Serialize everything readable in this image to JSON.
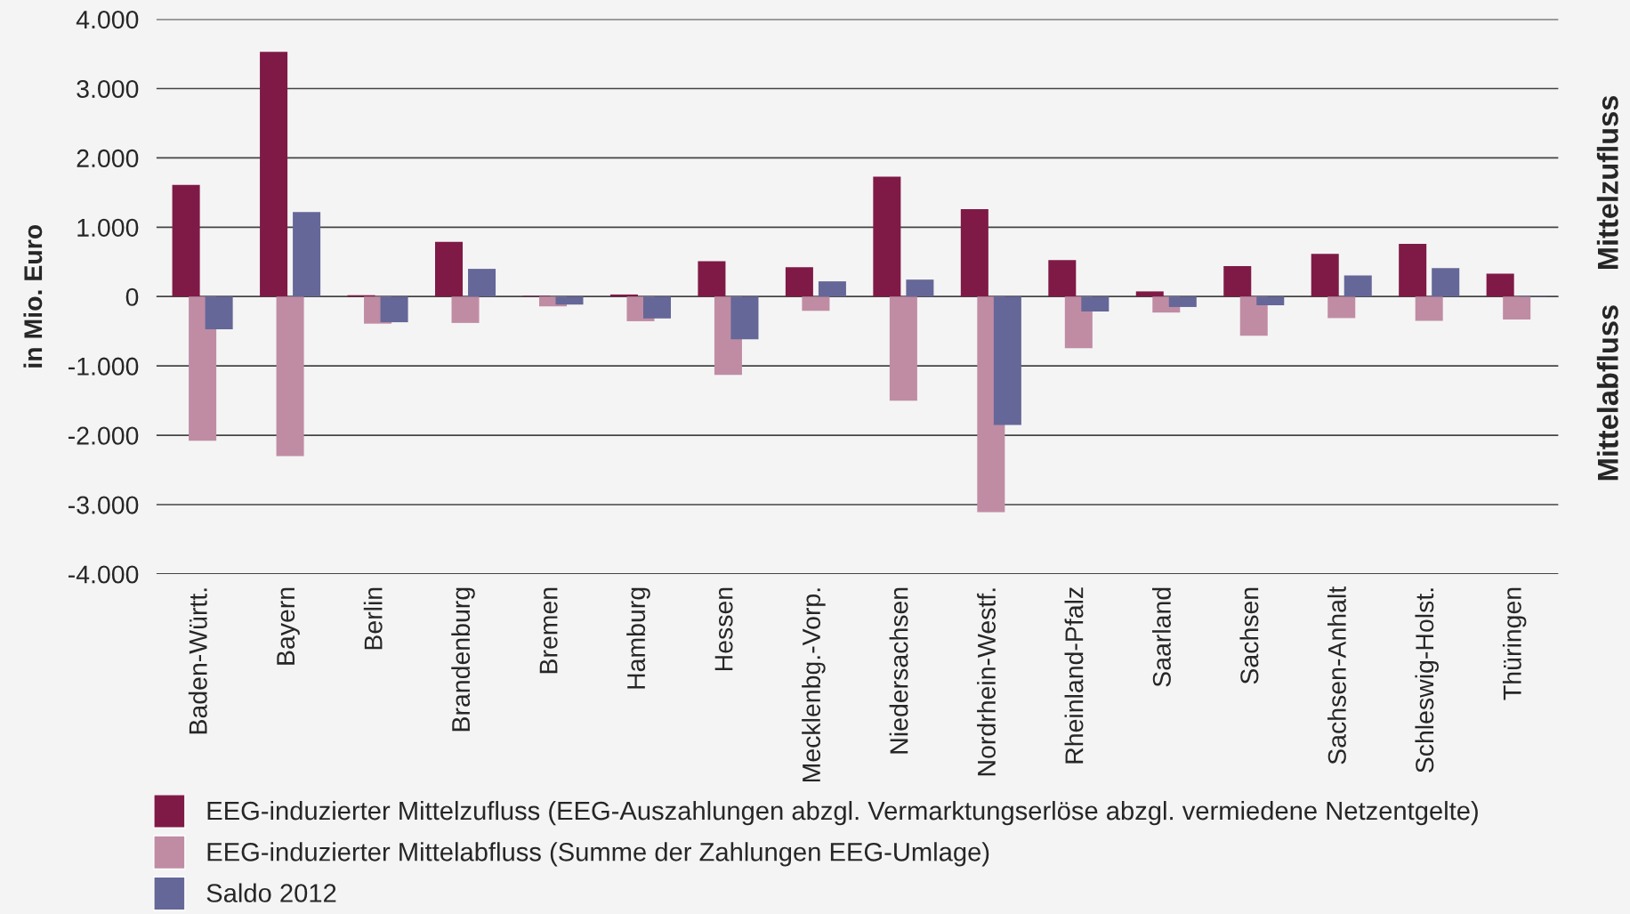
{
  "chart_data": {
    "type": "bar",
    "ylabel": "in Mio. Euro",
    "categories": [
      "Baden-Württ.",
      "Bayern",
      "Berlin",
      "Brandenburg",
      "Bremen",
      "Hamburg",
      "Hessen",
      "Mecklenbg.-Vorp.",
      "Niedersachsen",
      "Nordrhein-Westf.",
      "Rheinland-Pfalz",
      "Saarland",
      "Sachsen",
      "Sachsen-Anhalt",
      "Schleswig-Holst.",
      "Thüringen"
    ],
    "series": [
      {
        "name": "EEG-induzierter Mittelzufluss (EEG-Auszahlungen abzgl. Vermarktungserlöse abzgl. vermiedene Netzentgelte)",
        "color": "#7f1a46",
        "values": [
          1610,
          3530,
          20,
          790,
          10,
          30,
          510,
          425,
          1730,
          1260,
          525,
          75,
          440,
          615,
          760,
          330
        ]
      },
      {
        "name": "EEG-induzierter Mittelabfluss (Summe der Zahlungen EEG-Umlage)",
        "color": "#c08ca4",
        "values": [
          -2080,
          -2300,
          -390,
          -380,
          -140,
          -355,
          -1130,
          -205,
          -1500,
          -3110,
          -745,
          -230,
          -565,
          -310,
          -350,
          -330
        ]
      },
      {
        "name": "Saldo 2012",
        "color": "#656798",
        "values": [
          -470,
          1220,
          -370,
          400,
          -115,
          -315,
          -615,
          220,
          245,
          -1850,
          -215,
          -150,
          -125,
          305,
          410,
          10
        ]
      }
    ],
    "ylim": [
      -4000,
      4000
    ],
    "yticks": [
      {
        "value": -4000,
        "label": "-4.000"
      },
      {
        "value": -3000,
        "label": "-3.000"
      },
      {
        "value": -2000,
        "label": "-2.000"
      },
      {
        "value": -1000,
        "label": "-1.000"
      },
      0,
      {
        "value": 1000,
        "label": "1.000"
      },
      {
        "value": 2000,
        "label": "2.000"
      },
      {
        "value": 3000,
        "label": "3.000"
      },
      {
        "value": 4000,
        "label": "4.000"
      }
    ],
    "grid": "y",
    "legend": "bottom",
    "annotations": [
      "Mittelzufluss",
      "Mittelabfluss"
    ]
  }
}
